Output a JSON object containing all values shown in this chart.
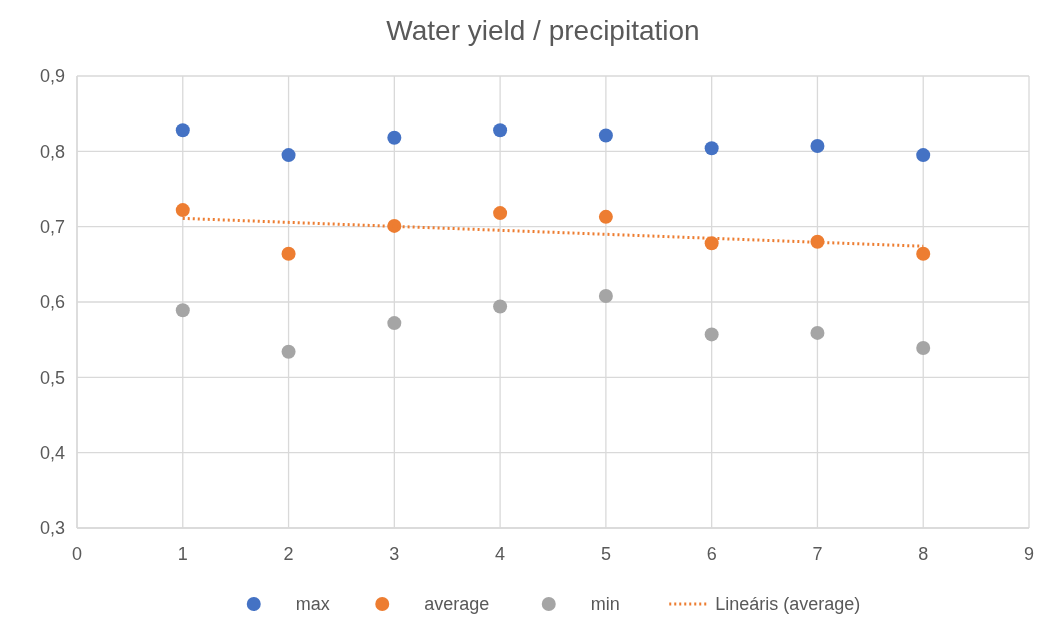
{
  "chart_data": {
    "type": "scatter",
    "title": "Water yield / precipitation",
    "x": [
      1,
      2,
      3,
      4,
      5,
      6,
      7,
      8
    ],
    "series": [
      {
        "name": "max",
        "color": "#4472c4",
        "values": [
          0.828,
          0.795,
          0.818,
          0.828,
          0.821,
          0.804,
          0.807,
          0.795
        ]
      },
      {
        "name": "average",
        "color": "#ed7d31",
        "values": [
          0.722,
          0.664,
          0.701,
          0.718,
          0.713,
          0.678,
          0.68,
          0.664
        ]
      },
      {
        "name": "min",
        "color": "#a5a5a5",
        "values": [
          0.589,
          0.534,
          0.572,
          0.594,
          0.608,
          0.557,
          0.559,
          0.539
        ]
      },
      {
        "name": "Lineáris (average)",
        "type": "line",
        "color": "#ed7d31",
        "x": [
          1,
          8
        ],
        "values": [
          0.711,
          0.674
        ],
        "line_style": "dotted",
        "marker": "none"
      }
    ],
    "xlim": [
      0,
      9
    ],
    "xticks": [
      {
        "value": 0,
        "label": "0"
      },
      {
        "value": 1,
        "label": "1"
      },
      {
        "value": 2,
        "label": "2"
      },
      {
        "value": 3,
        "label": "3"
      },
      {
        "value": 4,
        "label": "4"
      },
      {
        "value": 5,
        "label": "5"
      },
      {
        "value": 6,
        "label": "6"
      },
      {
        "value": 7,
        "label": "7"
      },
      {
        "value": 8,
        "label": "8"
      },
      {
        "value": 9,
        "label": "9"
      }
    ],
    "ylim": [
      0.3,
      0.9
    ],
    "yticks": [
      {
        "value": 0.3,
        "label": "0,3"
      },
      {
        "value": 0.4,
        "label": "0,4"
      },
      {
        "value": 0.5,
        "label": "0,5"
      },
      {
        "value": 0.6,
        "label": "0,6"
      },
      {
        "value": 0.7,
        "label": "0,7"
      },
      {
        "value": 0.8,
        "label": "0,8"
      },
      {
        "value": 0.9,
        "label": "0,9"
      }
    ],
    "grid": true,
    "legend": "bottom",
    "marker": "circle"
  }
}
